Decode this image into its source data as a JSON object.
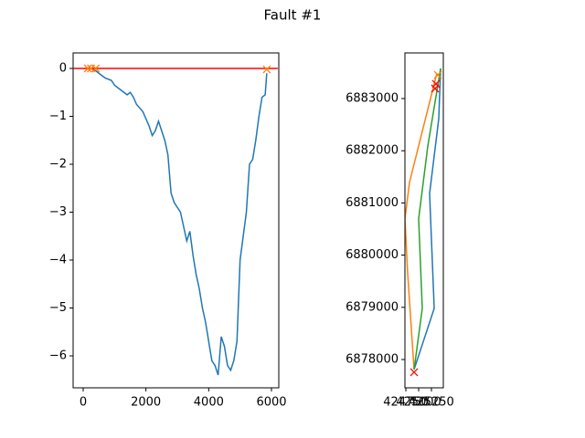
{
  "title": "Fault #1",
  "chart_data": [
    {
      "type": "line",
      "xlim": [
        -320,
        6233
      ],
      "ylim": [
        -6.667,
        0.324
      ],
      "xticks": [
        0,
        2000,
        4000,
        6000
      ],
      "yticks": [
        0,
        {
          "value": -1,
          "label": "−1"
        },
        {
          "value": -2,
          "label": "−2"
        },
        {
          "value": -3,
          "label": "−3"
        },
        {
          "value": -4,
          "label": "−4"
        },
        {
          "value": -5,
          "label": "−5"
        },
        {
          "value": -6,
          "label": "−6"
        }
      ],
      "series": [
        {
          "color": "#1f77b4",
          "marker": "none",
          "x": [
            300,
            400,
            500,
            600,
            700,
            900,
            1000,
            1200,
            1400,
            1500,
            1600,
            1700,
            1900,
            2100,
            2200,
            2300,
            2400,
            2500,
            2600,
            2700,
            2800,
            2900,
            3100,
            3200,
            3300,
            3400,
            3500,
            3600,
            3700,
            3800,
            3900,
            4000,
            4100,
            4200,
            4300,
            4400,
            4500,
            4600,
            4700,
            4800,
            4900,
            5000,
            5100,
            5200,
            5300,
            5400,
            5500,
            5600,
            5700,
            5800,
            5850
          ],
          "values": [
            0,
            -0.05,
            -0.1,
            -0.15,
            -0.2,
            -0.25,
            -0.35,
            -0.45,
            -0.55,
            -0.5,
            -0.6,
            -0.75,
            -0.9,
            -1.2,
            -1.4,
            -1.3,
            -1.1,
            -1.3,
            -1.5,
            -1.8,
            -2.6,
            -2.8,
            -3.0,
            -3.3,
            -3.6,
            -3.4,
            -3.9,
            -4.3,
            -4.6,
            -5.0,
            -5.3,
            -5.7,
            -6.1,
            -6.2,
            -6.4,
            -5.6,
            -5.8,
            -6.2,
            -6.3,
            -6.1,
            -5.7,
            -4.0,
            -3.5,
            -3.0,
            -2.0,
            -1.9,
            -1.5,
            -1.0,
            -0.6,
            -0.55,
            -0.1
          ]
        },
        {
          "color": "red",
          "marker": "none",
          "x": [
            -300,
            6200
          ],
          "values": [
            0,
            0
          ]
        },
        {
          "color": "#ff7f0e",
          "marker": "x",
          "x": [
            150,
            250,
            400,
            5850
          ],
          "values": [
            0,
            0,
            0,
            -0.02
          ]
        }
      ]
    },
    {
      "type": "line",
      "xlim": [
        424732,
        425482
      ],
      "ylim": [
        6877458,
        6883874
      ],
      "xticks": [
        424750,
        425000,
        425250
      ],
      "yticks": [
        6878000,
        6879000,
        6880000,
        6881000,
        6882000,
        6883000
      ],
      "series": [
        {
          "color": "#1f77b4",
          "marker": "none",
          "x": [
            424911,
            425304,
            425214,
            425393,
            425429
          ],
          "values": [
            6877809,
            6878980,
            6881182,
            6882615,
            6883577
          ]
        },
        {
          "color": "#ff7f0e",
          "marker": "none",
          "x": [
            424911,
            424786,
            424732,
            424821,
            425089,
            425357
          ],
          "values": [
            6877809,
            6879644,
            6880693,
            6881392,
            6882441,
            6883489
          ]
        },
        {
          "color": "#2ca02c",
          "marker": "none",
          "x": [
            424911,
            425071,
            425000,
            425179,
            425429
          ],
          "values": [
            6877809,
            6878980,
            6880693,
            6882091,
            6883577
          ]
        },
        {
          "color": "red",
          "marker": "x",
          "x": [
            424911,
            425321,
            425339
          ],
          "values": [
            6877756,
            6883192,
            6883280
          ]
        },
        {
          "color": "#ff7f0e",
          "marker": "x",
          "x": [
            425375
          ],
          "values": [
            6883454
          ]
        }
      ]
    }
  ]
}
